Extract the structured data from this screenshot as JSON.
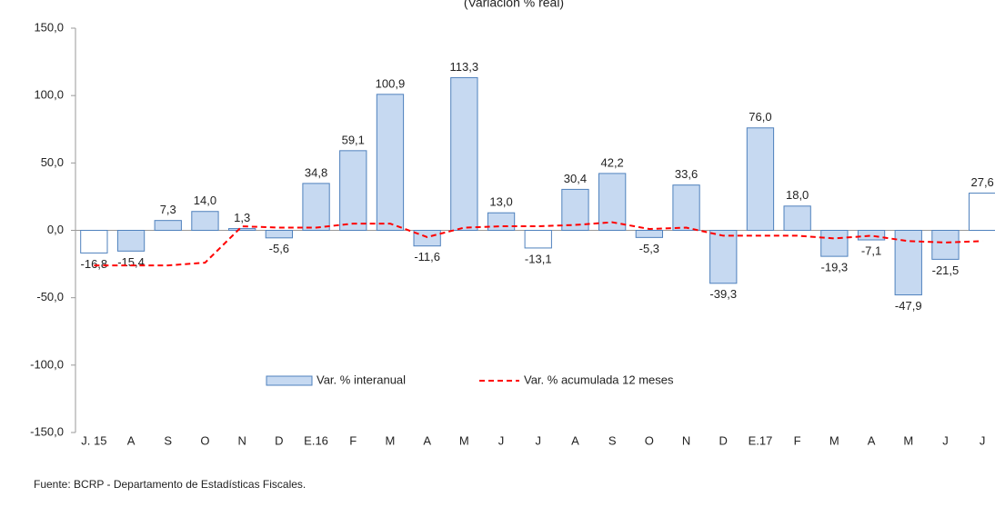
{
  "chart_data": {
    "type": "bar",
    "title": "(Variación % real)",
    "categories": [
      "J. 15",
      "A",
      "S",
      "O",
      "N",
      "D",
      "E.16",
      "F",
      "M",
      "A",
      "M",
      "J",
      "J",
      "A",
      "S",
      "O",
      "N",
      "D",
      "E.17",
      "F",
      "M",
      "A",
      "M",
      "J",
      "J"
    ],
    "series": [
      {
        "name": "Var. % interanual",
        "type": "bar",
        "color": "#c6d9f1",
        "edge": "#4f81bd",
        "bar_colors": [
          "#ffffff",
          "#c6d9f1",
          "#c6d9f1",
          "#c6d9f1",
          "#c6d9f1",
          "#c6d9f1",
          "#c6d9f1",
          "#c6d9f1",
          "#c6d9f1",
          "#c6d9f1",
          "#c6d9f1",
          "#c6d9f1",
          "#ffffff",
          "#c6d9f1",
          "#c6d9f1",
          "#c6d9f1",
          "#c6d9f1",
          "#c6d9f1",
          "#c6d9f1",
          "#c6d9f1",
          "#c6d9f1",
          "#c6d9f1",
          "#c6d9f1",
          "#c6d9f1",
          "#ffffff"
        ],
        "values": [
          -16.8,
          -15.4,
          7.3,
          14.0,
          1.3,
          -5.6,
          34.8,
          59.1,
          100.9,
          -11.6,
          113.3,
          13.0,
          -13.1,
          30.4,
          42.2,
          -5.3,
          33.6,
          -39.3,
          76.0,
          18.0,
          -19.3,
          -7.1,
          -47.9,
          -21.5,
          27.6
        ],
        "value_labels": [
          "-16,8",
          "-15,4",
          "7,3",
          "14,0",
          "1,3",
          "-5,6",
          "34,8",
          "59,1",
          "100,9",
          "-11,6",
          "113,3",
          "13,0",
          "-13,1",
          "30,4",
          "42,2",
          "-5,3",
          "33,6",
          "-39,3",
          "76,0",
          "18,0",
          "-19,3",
          "-7,1",
          "-47,9",
          "-21,5",
          "27,6"
        ]
      },
      {
        "name": "Var. % acumulada 12 meses",
        "type": "line",
        "color": "#ff0000",
        "dashed": true,
        "values": [
          -26,
          -26,
          -26,
          -24,
          3,
          2,
          2,
          5,
          5,
          -5,
          2,
          3,
          3,
          4,
          6,
          1,
          2,
          -4,
          -4,
          -4,
          -6,
          -4,
          -8,
          -9,
          -8
        ]
      }
    ],
    "ylim": [
      -150,
      150
    ],
    "yticks": [
      {
        "value": -150,
        "label": "-150,0"
      },
      {
        "value": -100,
        "label": "-100,0"
      },
      {
        "value": -50,
        "label": "-50,0"
      },
      {
        "value": 0,
        "label": "0,0"
      },
      {
        "value": 50,
        "label": "50,0"
      },
      {
        "value": 100,
        "label": "100,0"
      },
      {
        "value": 150,
        "label": "150,0"
      }
    ],
    "grid": false,
    "source": "Fuente: BCRP - Departamento de Estadísticas Fiscales."
  }
}
